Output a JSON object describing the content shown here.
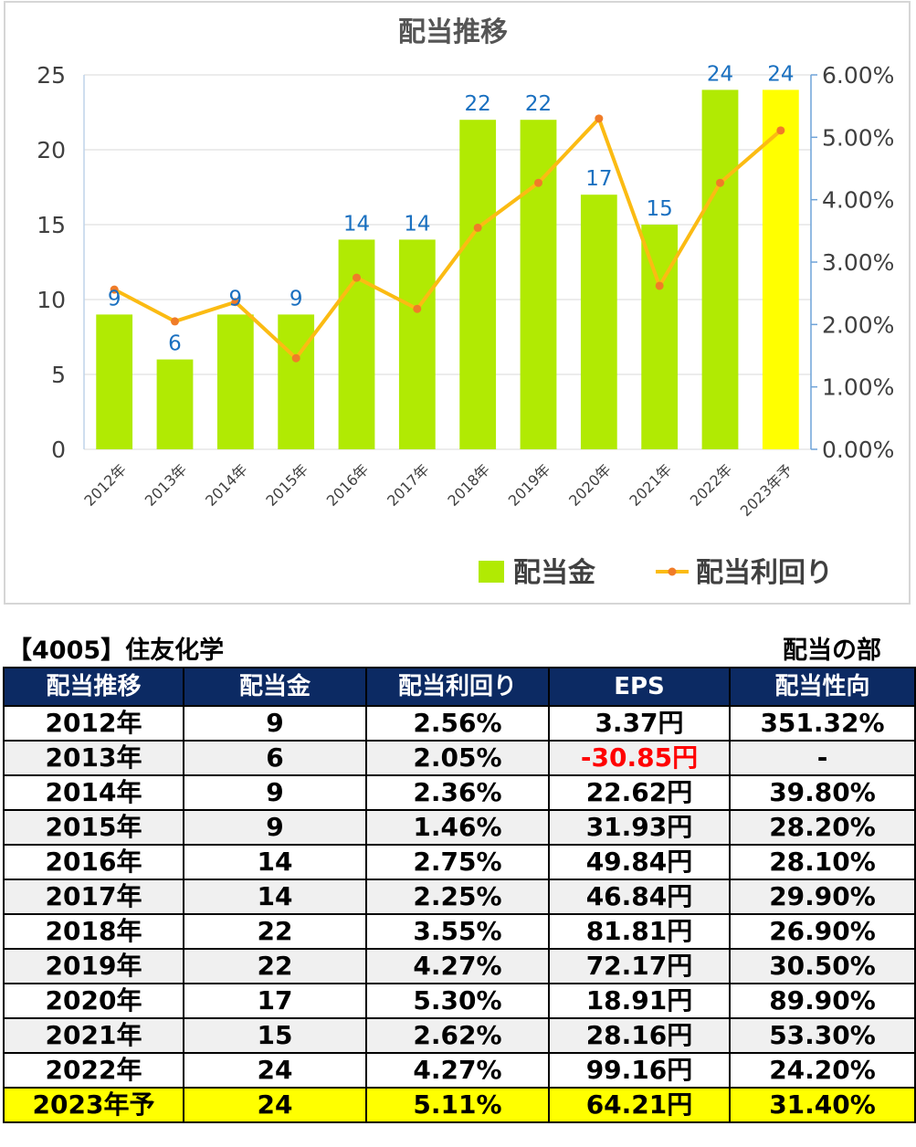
{
  "chart_data": {
    "type": "bar+line",
    "title": "配当推移",
    "categories": [
      "2012年",
      "2013年",
      "2014年",
      "2015年",
      "2016年",
      "2017年",
      "2018年",
      "2019年",
      "2020年",
      "2021年",
      "2022年",
      "2023年予"
    ],
    "series": [
      {
        "name": "配当金",
        "type": "bar",
        "axis": "left",
        "values": [
          9,
          6,
          9,
          9,
          14,
          14,
          22,
          22,
          17,
          15,
          24,
          24
        ],
        "color": "#b1ea03",
        "highlight_last_color": "#ffff00"
      },
      {
        "name": "配当利回り",
        "type": "line",
        "axis": "right",
        "values": [
          2.56,
          2.05,
          2.36,
          1.46,
          2.75,
          2.25,
          3.55,
          4.27,
          5.3,
          2.62,
          4.27,
          5.11
        ],
        "color": "#fbbb13",
        "marker_color": "#f07c28"
      }
    ],
    "y_left": {
      "min": 0,
      "max": 25,
      "ticks": [
        "0",
        "5",
        "10",
        "15",
        "20",
        "25"
      ]
    },
    "y_right": {
      "min": 0,
      "max": 6,
      "ticks": [
        "0.00%",
        "1.00%",
        "2.00%",
        "3.00%",
        "4.00%",
        "5.00%",
        "6.00%"
      ]
    },
    "data_label_color": "#1a70c0",
    "grid": "horizontal",
    "legend_position": "bottom-right"
  },
  "table": {
    "title": "【4005】住友化学",
    "section": "配当の部",
    "headers": [
      "配当推移",
      "配当金",
      "配当利回り",
      "EPS",
      "配当性向"
    ],
    "rows": [
      [
        "2012年",
        "9",
        "2.56%",
        "3.37円",
        "351.32%"
      ],
      [
        "2013年",
        "6",
        "2.05%",
        "-30.85円",
        "-"
      ],
      [
        "2014年",
        "9",
        "2.36%",
        "22.62円",
        "39.80%"
      ],
      [
        "2015年",
        "9",
        "1.46%",
        "31.93円",
        "28.20%"
      ],
      [
        "2016年",
        "14",
        "2.75%",
        "49.84円",
        "28.10%"
      ],
      [
        "2017年",
        "14",
        "2.25%",
        "46.84円",
        "29.90%"
      ],
      [
        "2018年",
        "22",
        "3.55%",
        "81.81円",
        "26.90%"
      ],
      [
        "2019年",
        "22",
        "4.27%",
        "72.17円",
        "30.50%"
      ],
      [
        "2020年",
        "17",
        "5.30%",
        "18.91円",
        "89.90%"
      ],
      [
        "2021年",
        "15",
        "2.62%",
        "28.16円",
        "53.30%"
      ],
      [
        "2022年",
        "24",
        "4.27%",
        "99.16円",
        "24.20%"
      ],
      [
        "2023年予",
        "24",
        "5.11%",
        "64.21円",
        "31.40%"
      ]
    ],
    "colors": {
      "header_bg": "#0c2a63",
      "header_text": "#ffffff",
      "negative": "#ff0000",
      "forecast_row": "#ffff00"
    }
  }
}
